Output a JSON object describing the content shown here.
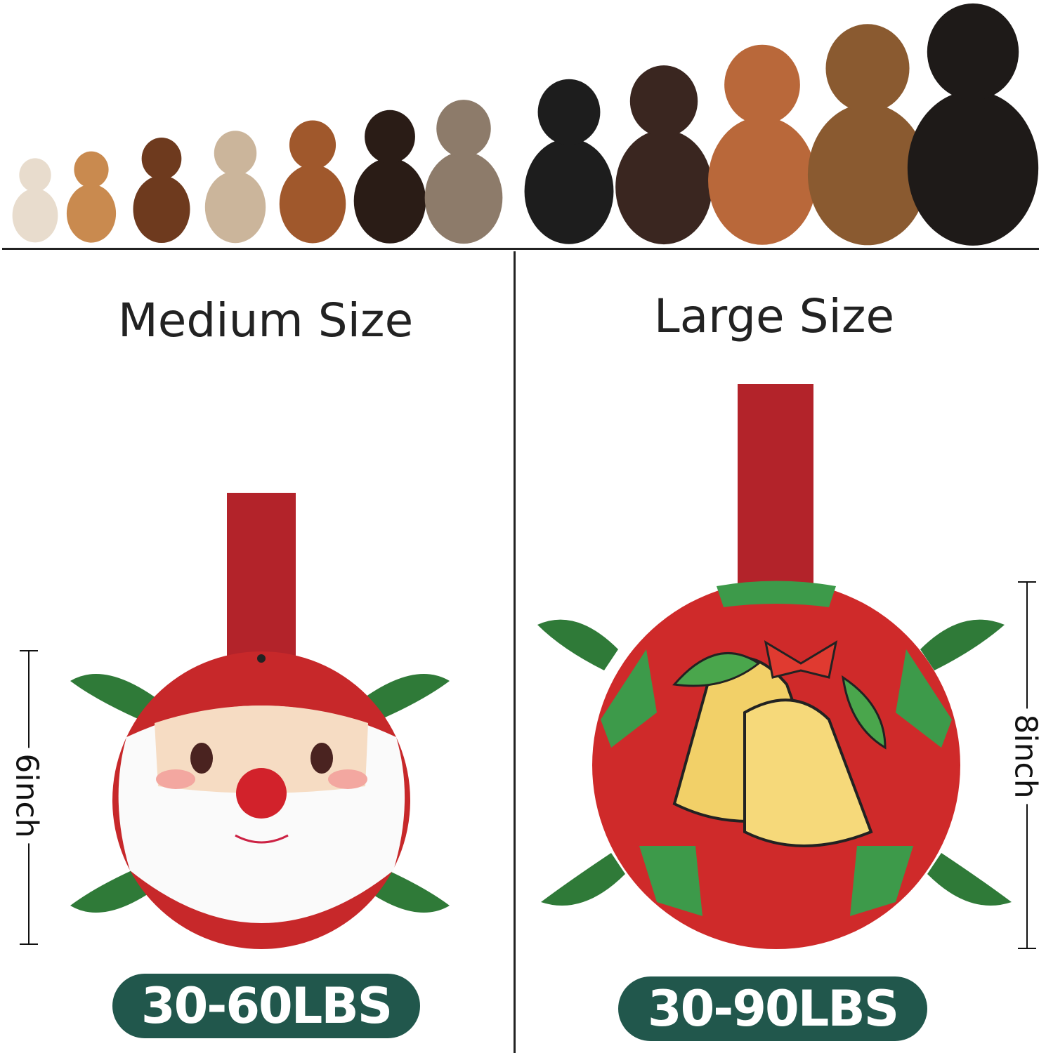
{
  "medium": {
    "title": "Medium Size",
    "weight": "30-60LBS",
    "dimension": "6inch"
  },
  "large": {
    "title": "Large Size",
    "weight": "30-90LBS",
    "dimension": "8inch"
  },
  "colors": {
    "badge": "#21574c",
    "strap_red": "#b3232a",
    "strap_green": "#2f7a38",
    "ball_red": "#cf2a2a",
    "ball_green": "#3d9a4a"
  },
  "dog_colors": [
    "#e8dccd",
    "#c98a4f",
    "#6e3a1e",
    "#cbb59b",
    "#a0582c",
    "#2a1c16",
    "#8d7b6a",
    "#1d1d1d",
    "#3a2620",
    "#b9683a",
    "#8a5a30",
    "#1e1a18"
  ]
}
